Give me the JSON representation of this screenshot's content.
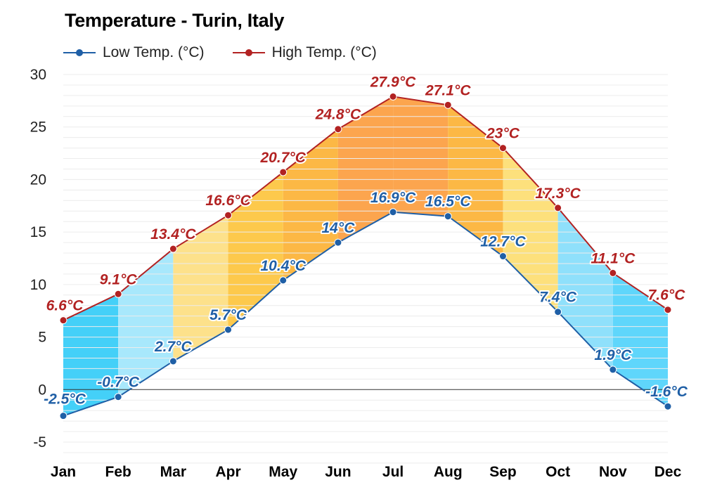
{
  "chart_data": {
    "type": "line",
    "title": "Temperature - Turin, Italy",
    "categories": [
      "Jan",
      "Feb",
      "Mar",
      "Apr",
      "May",
      "Jun",
      "Jul",
      "Aug",
      "Sep",
      "Oct",
      "Nov",
      "Dec"
    ],
    "series": [
      {
        "name": "Low Temp. (°C)",
        "color": "#1f5fa6",
        "values": [
          -2.5,
          -0.7,
          2.7,
          5.7,
          10.4,
          14,
          16.9,
          16.5,
          12.7,
          7.4,
          1.9,
          -1.6
        ],
        "labels": [
          "-2.5°C",
          "-0.7°C",
          "2.7°C",
          "5.7°C",
          "10.4°C",
          "14°C",
          "16.9°C",
          "16.5°C",
          "12.7°C",
          "7.4°C",
          "1.9°C",
          "-1.6°C"
        ]
      },
      {
        "name": "High Temp. (°C)",
        "color": "#b22222",
        "values": [
          6.6,
          9.1,
          13.4,
          16.6,
          20.7,
          24.8,
          27.9,
          27.1,
          23,
          17.3,
          11.1,
          7.6
        ],
        "labels": [
          "6.6°C",
          "9.1°C",
          "13.4°C",
          "16.6°C",
          "20.7°C",
          "24.8°C",
          "27.9°C",
          "27.1°C",
          "23°C",
          "17.3°C",
          "11.1°C",
          "7.6°C"
        ]
      }
    ],
    "band_colors": [
      "#44d0f8",
      "#a8e8fc",
      "#fde18b",
      "#fdc94c",
      "#fcb845",
      "#fca54e",
      "#fca54e",
      "#fcb845",
      "#fde07c",
      "#8fe0fb",
      "#5fd6fb",
      "#44d0f8"
    ],
    "ylim": [
      -7,
      30
    ],
    "yticks": [
      -5,
      0,
      5,
      10,
      15,
      20,
      25,
      30
    ],
    "grid": true,
    "legend": "top-left",
    "xlabel": "",
    "ylabel": ""
  }
}
